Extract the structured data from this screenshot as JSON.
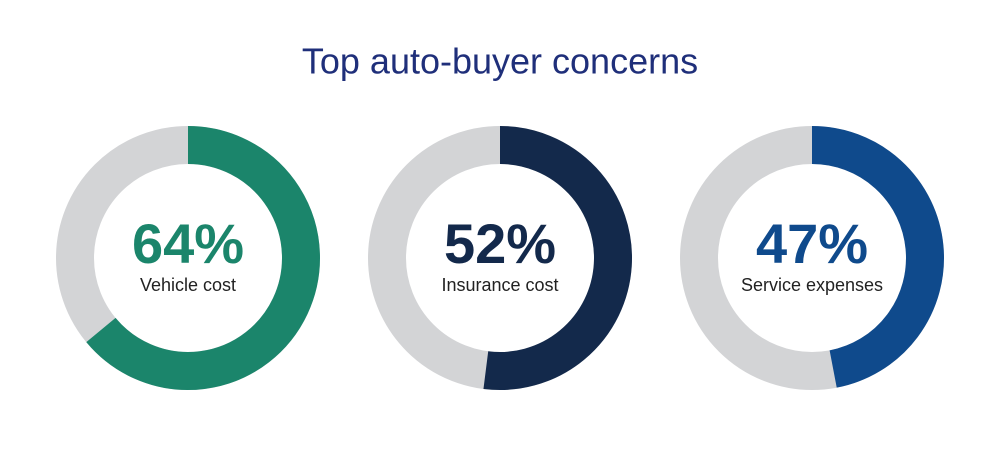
{
  "title": "Top auto-buyer concerns",
  "chart_data": [
    {
      "type": "donut",
      "categories": [
        "Vehicle cost"
      ],
      "values": [
        64
      ],
      "value_labels": [
        "64%"
      ],
      "color": "#1b856b"
    },
    {
      "type": "donut",
      "categories": [
        "Insurance cost"
      ],
      "values": [
        52
      ],
      "value_labels": [
        "52%"
      ],
      "color": "#13294b"
    },
    {
      "type": "donut",
      "categories": [
        "Service expenses"
      ],
      "values": [
        47
      ],
      "value_labels": [
        "47%"
      ],
      "color": "#0f4a8c"
    }
  ]
}
